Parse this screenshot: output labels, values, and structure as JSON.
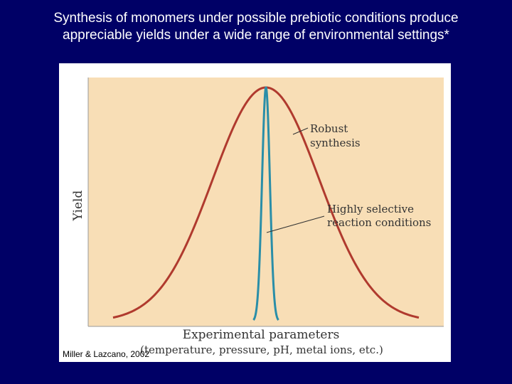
{
  "slide": {
    "title_line1": "Synthesis of monomers under possible prebiotic conditions produce",
    "title_line2": "appreciable yields under a wide range of environmental settings*",
    "caption": "Miller & Lazcano, 2002"
  },
  "chart_data": {
    "type": "line",
    "ylabel": "Yield",
    "xlabel_line1": "Experimental parameters",
    "xlabel_line2": "(temperature, pressure, pH, metal ions, etc.)",
    "xlim": [
      0,
      1
    ],
    "ylim": [
      0,
      1
    ],
    "grid": false,
    "series": [
      {
        "name": "Robust synthesis",
        "label_line1": "Robust",
        "label_line2": "synthesis",
        "color": "#b03a2e",
        "center": 0.5,
        "width": 0.15,
        "peak": 0.96
      },
      {
        "name": "Highly selective reaction conditions",
        "label_line1": "Highly selective",
        "label_line2": "reaction conditions",
        "color": "#2a8ea8",
        "center": 0.5,
        "width": 0.011,
        "peak": 0.96
      }
    ]
  },
  "colors": {
    "page_background": "#000066",
    "plot_background": "#f8deb6",
    "title_text": "#ffffff"
  }
}
